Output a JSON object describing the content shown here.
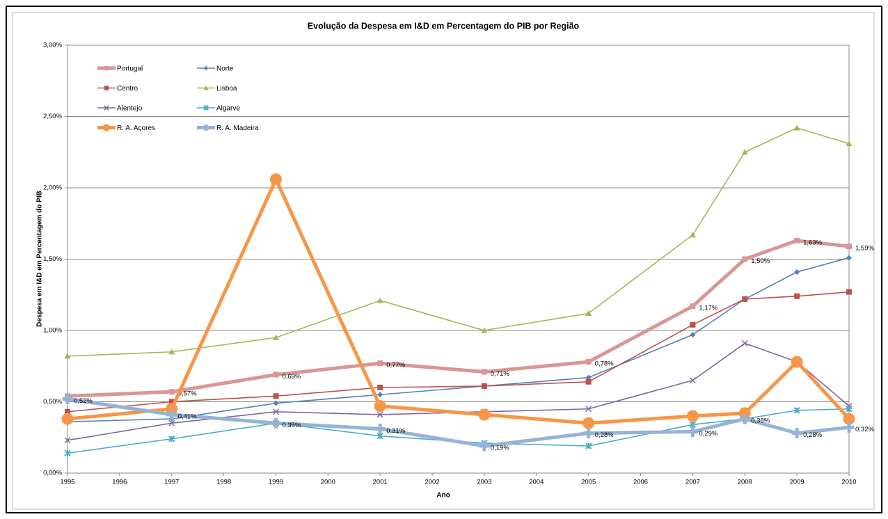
{
  "chart_data": {
    "type": "line",
    "title": "Evolução da Despesa em I&D em Percentagem do PIB por Região",
    "x_label": "Ano",
    "y_label": "Despesa em I&D em Percentagem do PIB",
    "x": [
      1995,
      1997,
      1999,
      2001,
      2003,
      2005,
      2007,
      2008,
      2009,
      2010
    ],
    "xlim": [
      1995,
      2010
    ],
    "xticks": [
      1995,
      1996,
      1997,
      1998,
      1999,
      2000,
      2001,
      2002,
      2003,
      2004,
      2005,
      2006,
      2007,
      2008,
      2009,
      2010
    ],
    "ylim": [
      0,
      3
    ],
    "yticks": [
      {
        "value": 0,
        "label": "0,00%"
      },
      {
        "value": 0.5,
        "label": "0,50%"
      },
      {
        "value": 1,
        "label": "1,00%"
      },
      {
        "value": 1.5,
        "label": "1,50%"
      },
      {
        "value": 2,
        "label": "2,00%"
      },
      {
        "value": 2.5,
        "label": "2,50%"
      },
      {
        "value": 3,
        "label": "3,00%"
      }
    ],
    "grid": true,
    "legend": "top-left",
    "series": [
      {
        "name": "Portugal",
        "color": "#d99694",
        "marker": "square",
        "values": [
          0.54,
          0.57,
          0.69,
          0.77,
          0.71,
          0.78,
          1.17,
          1.5,
          1.63,
          1.59
        ],
        "value_labels": [
          null,
          "0,57%",
          "0,69%",
          "0,77%",
          "0,71%",
          "0,78%",
          "1,17%",
          "1,50%",
          "1,63%",
          "1,59%"
        ]
      },
      {
        "name": "Norte",
        "color": "#4f81bd",
        "marker": "diamond",
        "values": [
          0.36,
          0.38,
          0.49,
          0.55,
          0.61,
          0.67,
          0.97,
          1.22,
          1.41,
          1.51
        ]
      },
      {
        "name": "Centro",
        "color": "#c0504d",
        "marker": "square",
        "values": [
          0.43,
          0.5,
          0.54,
          0.6,
          0.61,
          0.64,
          1.04,
          1.22,
          1.24,
          1.27
        ]
      },
      {
        "name": "Lisboa",
        "color": "#9bbb59",
        "marker": "triangle",
        "values": [
          0.82,
          0.85,
          0.95,
          1.21,
          1.0,
          1.12,
          1.67,
          2.25,
          2.42,
          2.31
        ]
      },
      {
        "name": "Alentejo",
        "color": "#8064a2",
        "marker": "x",
        "values": [
          0.23,
          0.35,
          0.43,
          0.41,
          0.43,
          0.45,
          0.65,
          0.91,
          0.78,
          0.47
        ]
      },
      {
        "name": "Algarve",
        "color": "#4bacc6",
        "marker": "star",
        "values": [
          0.14,
          0.24,
          0.35,
          0.26,
          0.21,
          0.19,
          0.34,
          0.38,
          0.44,
          0.45
        ]
      },
      {
        "name": "R. A. Açores",
        "color": "#f79646",
        "marker": "circle",
        "values": [
          0.38,
          0.45,
          2.06,
          0.47,
          0.41,
          0.35,
          0.4,
          0.42,
          0.78,
          0.38
        ]
      },
      {
        "name": "R. A. Madeira",
        "color": "#95b3d7",
        "marker": "plus",
        "values": [
          0.52,
          0.41,
          0.35,
          0.31,
          0.19,
          0.28,
          0.29,
          0.38,
          0.28,
          0.32
        ],
        "value_labels": [
          "0,52%",
          "0,41%",
          "0,35%",
          "0,31%",
          "0,19%",
          "0,28%",
          "0,29%",
          "0,38%",
          "0,28%",
          "0,32%"
        ]
      }
    ]
  }
}
